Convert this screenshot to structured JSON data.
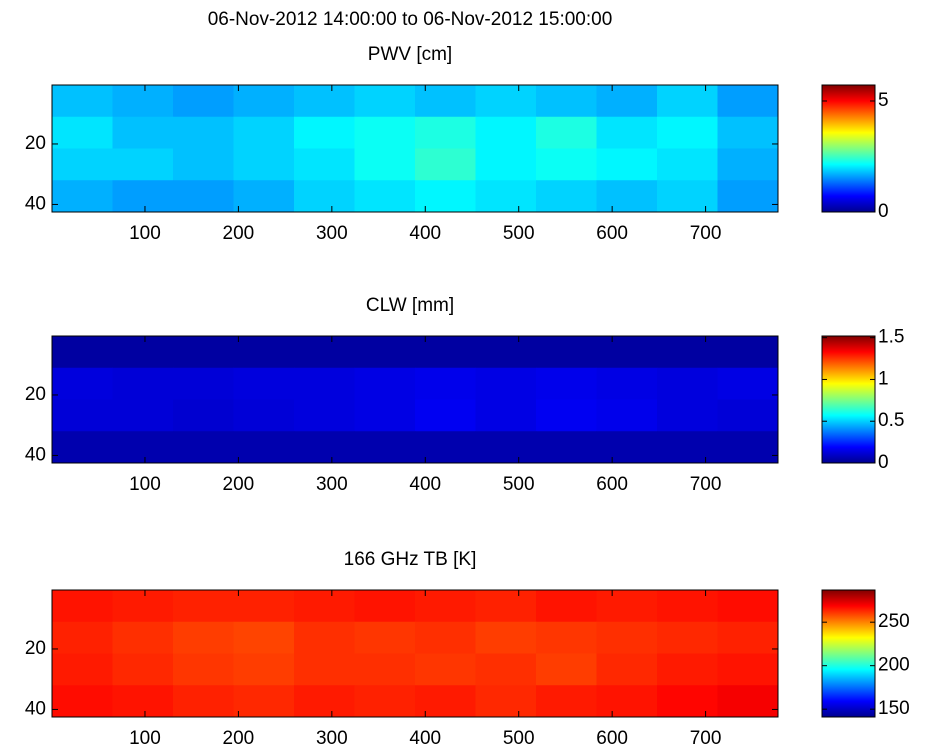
{
  "figure_title": "06-Nov-2012 14:00:00 to 06-Nov-2012 15:00:00",
  "chart_data": [
    {
      "type": "heatmap",
      "title": "PWV [cm]",
      "colormap": "jet",
      "ydir": "reverse",
      "xlim": [
        0.5,
        777.5
      ],
      "xticks": [
        100,
        200,
        300,
        400,
        500,
        600,
        700
      ],
      "ylim": [
        0.5,
        42.5
      ],
      "yticks": [
        20,
        40
      ],
      "clim": [
        0,
        5.72
      ],
      "cticks": [
        0,
        5
      ],
      "values": [
        [
          1.8,
          1.7,
          1.6,
          1.7,
          1.8,
          1.9,
          1.8,
          1.9,
          1.8,
          1.7,
          1.9,
          1.6
        ],
        [
          2.0,
          1.8,
          1.8,
          1.9,
          2.1,
          2.2,
          2.3,
          2.1,
          2.3,
          2.0,
          2.1,
          1.8
        ],
        [
          1.9,
          1.9,
          1.8,
          1.9,
          2.0,
          2.2,
          2.4,
          2.1,
          2.2,
          2.1,
          2.0,
          1.7
        ],
        [
          1.7,
          1.6,
          1.6,
          1.7,
          1.9,
          2.0,
          2.1,
          2.0,
          1.9,
          1.8,
          1.9,
          1.6
        ]
      ]
    },
    {
      "type": "heatmap",
      "title": "CLW [mm]",
      "colormap": "jet",
      "ydir": "reverse",
      "xlim": [
        0.5,
        777.5
      ],
      "xticks": [
        100,
        200,
        300,
        400,
        500,
        600,
        700
      ],
      "ylim": [
        0.5,
        42.5
      ],
      "yticks": [
        20,
        40
      ],
      "clim": [
        0,
        1.52
      ],
      "cticks": [
        0,
        0.5,
        1,
        1.5
      ],
      "values": [
        [
          0.05,
          0.05,
          0.05,
          0.05,
          0.05,
          0.05,
          0.05,
          0.05,
          0.05,
          0.05,
          0.05,
          0.05
        ],
        [
          0.14,
          0.13,
          0.13,
          0.14,
          0.14,
          0.15,
          0.16,
          0.15,
          0.16,
          0.15,
          0.14,
          0.15
        ],
        [
          0.13,
          0.13,
          0.12,
          0.13,
          0.14,
          0.15,
          0.17,
          0.15,
          0.17,
          0.16,
          0.14,
          0.13
        ],
        [
          0.07,
          0.07,
          0.07,
          0.07,
          0.07,
          0.07,
          0.07,
          0.07,
          0.07,
          0.07,
          0.07,
          0.07
        ]
      ]
    },
    {
      "type": "heatmap",
      "title": "166 GHz TB [K]",
      "colormap": "jet",
      "ydir": "reverse",
      "xlim": [
        0.5,
        777.5
      ],
      "xticks": [
        100,
        200,
        300,
        400,
        500,
        600,
        700
      ],
      "ylim": [
        0.5,
        42.5
      ],
      "yticks": [
        20,
        40
      ],
      "clim": [
        141,
        287
      ],
      "cticks": [
        150,
        200,
        250
      ],
      "values": [
        [
          266,
          265,
          264,
          264,
          265,
          266,
          265,
          264,
          266,
          265,
          266,
          267
        ],
        [
          264,
          262,
          260,
          259,
          262,
          261,
          262,
          260,
          261,
          262,
          263,
          264
        ],
        [
          265,
          263,
          261,
          260,
          262,
          262,
          261,
          262,
          260,
          263,
          265,
          266
        ],
        [
          267,
          266,
          264,
          263,
          265,
          264,
          265,
          263,
          265,
          266,
          268,
          270
        ]
      ]
    }
  ]
}
